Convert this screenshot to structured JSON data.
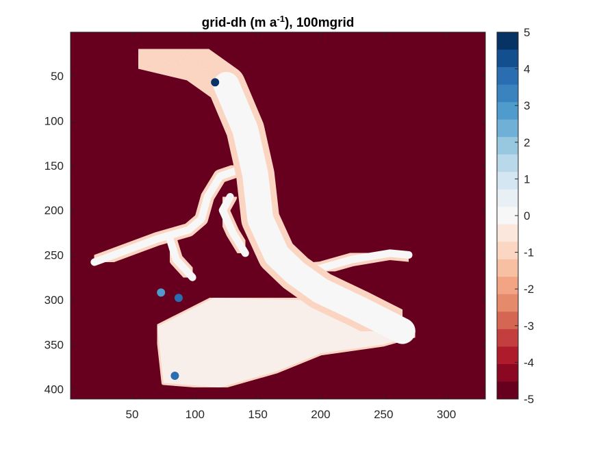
{
  "chart_data": {
    "type": "heatmap",
    "title": {
      "prefix": "grid-dh (m a",
      "superscript": "-1",
      "suffix": "), 100mgrid"
    },
    "xlabel": "",
    "ylabel": "",
    "xlim": [
      1,
      331
    ],
    "ylim": [
      411,
      1
    ],
    "y_reversed": true,
    "grid": false,
    "x_ticks": [
      50,
      100,
      150,
      200,
      250,
      300
    ],
    "y_ticks": [
      50,
      100,
      150,
      200,
      250,
      300,
      350,
      400
    ],
    "colorbar": {
      "location": "right",
      "range": [
        -5,
        5
      ],
      "ticks": [
        5,
        4,
        3,
        2,
        1,
        0,
        -1,
        -2,
        -3,
        -4,
        -5
      ],
      "colors_top_to_bottom": [
        "#063264",
        "#134f8f",
        "#2a6db1",
        "#3a83bf",
        "#4f9bcb",
        "#70b0d6",
        "#98c8e0",
        "#b9d9ea",
        "#d4e6f1",
        "#e8f0f5",
        "#f7f7f7",
        "#fbe7dc",
        "#fbd6c2",
        "#f8c0a3",
        "#f2a485",
        "#e68a6c",
        "#d56653",
        "#c33f3f",
        "#ae1c2c",
        "#8b0823",
        "#67001f"
      ]
    },
    "background_value": -5,
    "glacier": {
      "interior_value_approx": 0,
      "margin_values_approx": [
        -1,
        -3
      ],
      "trunk_centerline": [
        [
          55,
          20
        ],
        [
          100,
          35
        ],
        [
          125,
          60
        ],
        [
          140,
          110
        ],
        [
          148,
          160
        ],
        [
          152,
          210
        ],
        [
          165,
          250
        ],
        [
          180,
          270
        ],
        [
          200,
          290
        ],
        [
          230,
          310
        ],
        [
          265,
          335
        ]
      ],
      "tributaries": [
        [
          [
            145,
            150
          ],
          [
            120,
            162
          ],
          [
            110,
            185
          ],
          [
            105,
            210
          ],
          [
            95,
            222
          ],
          [
            70,
            232
          ],
          [
            45,
            245
          ],
          [
            20,
            258
          ]
        ],
        [
          [
            128,
            185
          ],
          [
            122,
            200
          ],
          [
            130,
            225
          ],
          [
            140,
            248
          ]
        ],
        [
          [
            80,
            232
          ],
          [
            85,
            255
          ],
          [
            98,
            275
          ]
        ],
        [
          [
            175,
            268
          ],
          [
            200,
            265
          ],
          [
            225,
            255
          ],
          [
            255,
            248
          ],
          [
            270,
            250
          ]
        ]
      ],
      "lower_lobes": [
        [
          [
            115,
            298
          ],
          [
            180,
            300
          ],
          [
            235,
            305
          ],
          [
            275,
            340
          ],
          [
            250,
            350
          ],
          [
            200,
            360
          ],
          [
            165,
            380
          ],
          [
            120,
            398
          ],
          [
            75,
            393
          ],
          [
            70,
            330
          ]
        ]
      ],
      "positive_spots": [
        {
          "x": 116,
          "y": 57,
          "value": 5
        },
        {
          "x": 87,
          "y": 298,
          "value": 4
        },
        {
          "x": 84,
          "y": 385,
          "value": 4
        },
        {
          "x": 73,
          "y": 292,
          "value": 3
        }
      ]
    }
  }
}
